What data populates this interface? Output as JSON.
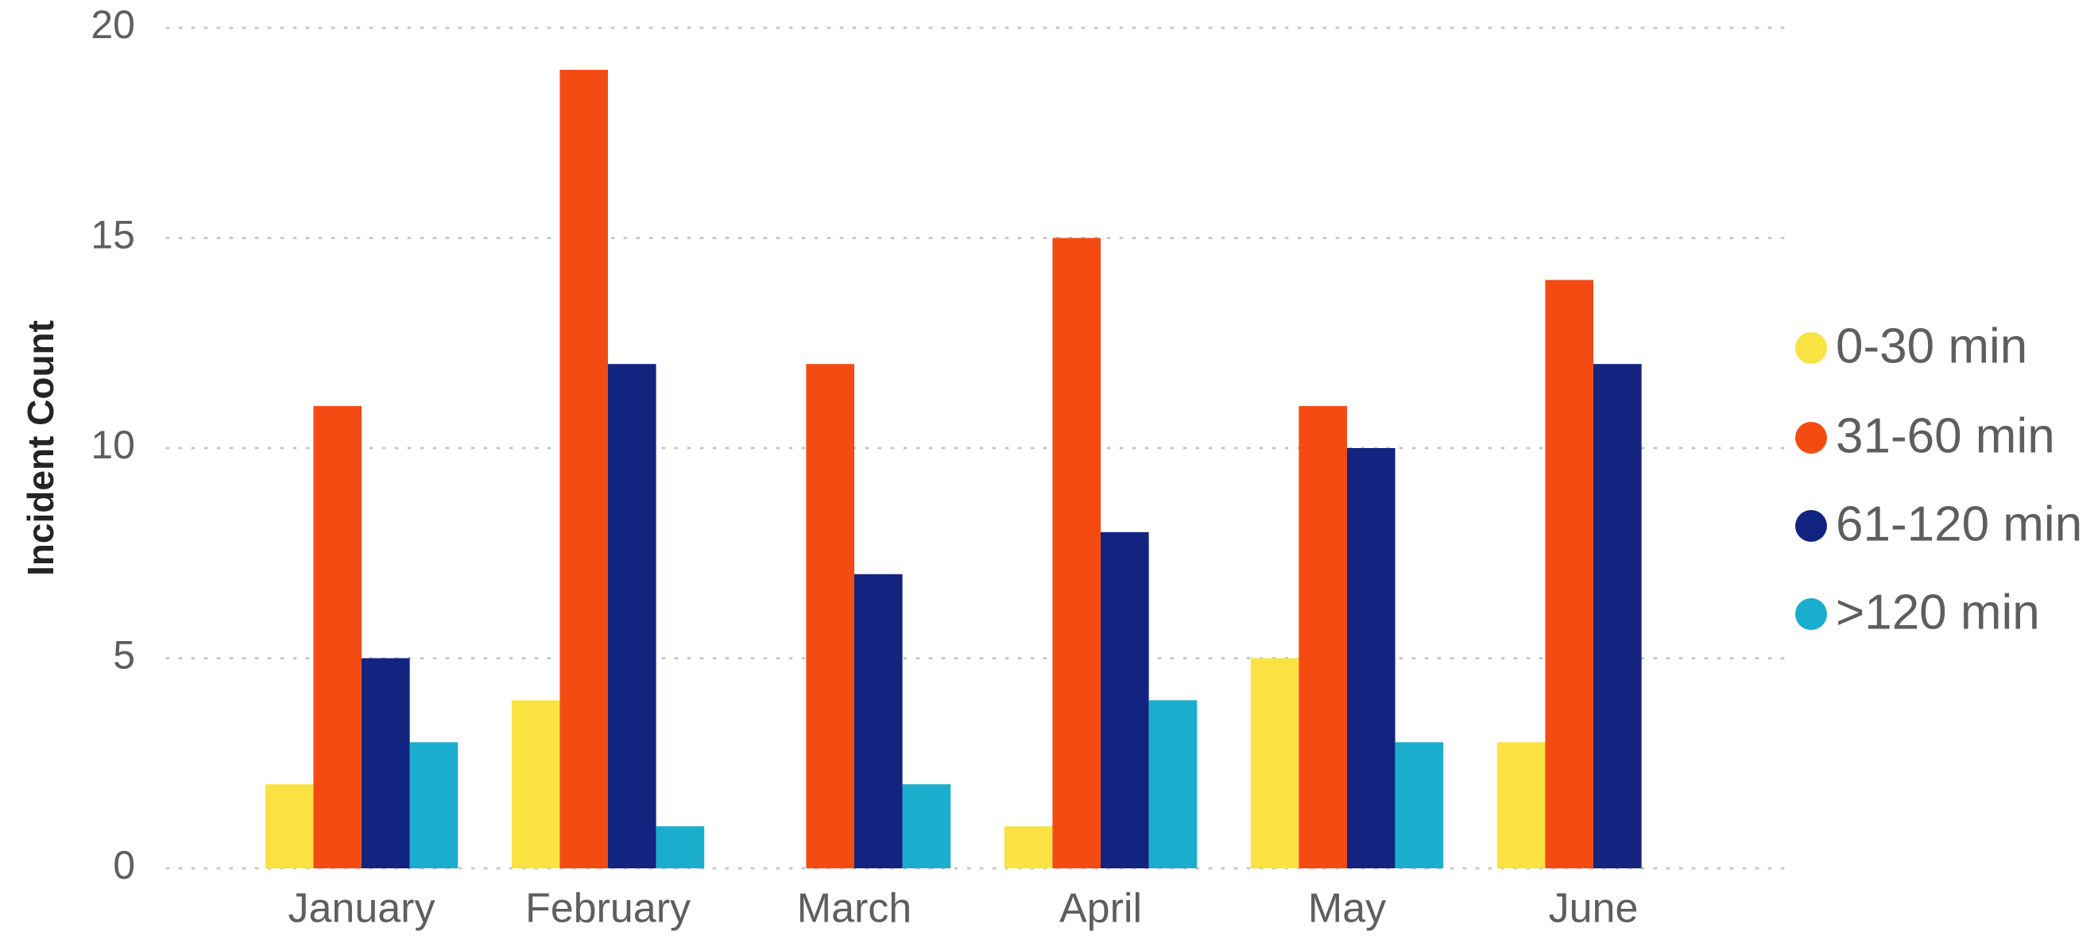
{
  "chart_data": {
    "type": "bar",
    "y_label": "Incident Count",
    "categories": [
      "January",
      "February",
      "March",
      "April",
      "May",
      "June"
    ],
    "series": [
      {
        "name": "0-30 min",
        "color": "#fae243",
        "values": [
          2,
          4,
          0,
          1,
          5,
          3
        ]
      },
      {
        "name": "31-60 min",
        "color": "#f44b13",
        "values": [
          11,
          19,
          12,
          15,
          11,
          14
        ]
      },
      {
        "name": "61-120 min",
        "color": "#12247f",
        "values": [
          5,
          12,
          7,
          8,
          10,
          12
        ]
      },
      {
        "name": ">120 min",
        "color": "#1aadce",
        "values": [
          3,
          1,
          2,
          4,
          3,
          0
        ]
      }
    ],
    "ylim": [
      0,
      20
    ],
    "yticks": [
      0,
      5,
      10,
      15,
      20
    ],
    "grid": true,
    "legend": "right"
  }
}
